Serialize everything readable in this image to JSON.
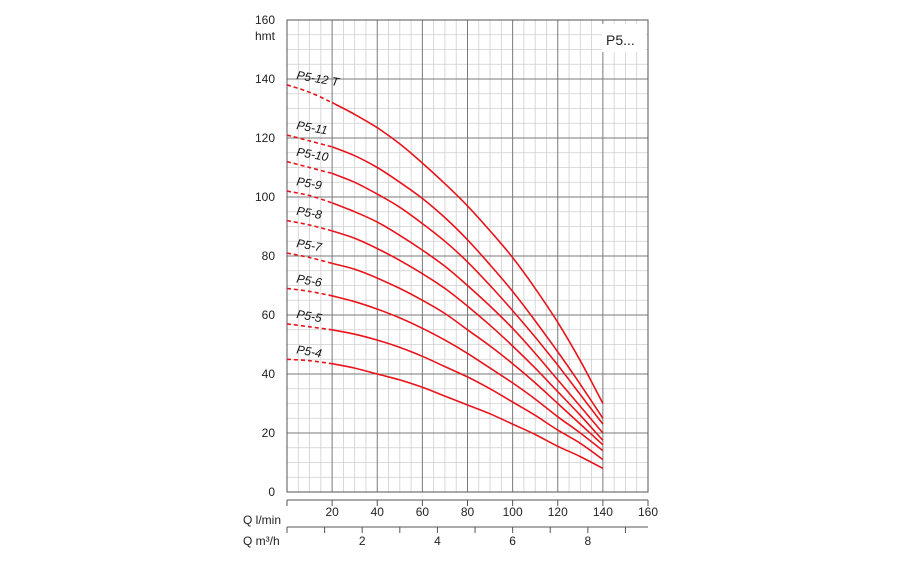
{
  "chart_data": {
    "type": "line",
    "tag": "P5...",
    "y_unit": "hmt",
    "ylim": [
      0,
      160
    ],
    "y_ticks": [
      0,
      20,
      40,
      60,
      80,
      100,
      120,
      140,
      160
    ],
    "x_unit_lmin": "Q l/min",
    "xlim_lmin": [
      0,
      160
    ],
    "x_ticks_lmin": [
      20,
      40,
      60,
      80,
      100,
      120,
      140,
      160
    ],
    "x_unit_m3h": "Q m³/h",
    "x_ticks_m3h": [
      2,
      4,
      6,
      8
    ],
    "grid": true,
    "series": [
      {
        "name": "P5-4",
        "x": [
          0,
          10,
          20,
          30,
          40,
          50,
          60,
          70,
          80,
          90,
          100,
          110,
          120,
          130,
          140
        ],
        "y": [
          45,
          44.5,
          43.5,
          42,
          40,
          38,
          35.5,
          32.5,
          29.5,
          26.5,
          23,
          19.5,
          15.5,
          12,
          8
        ]
      },
      {
        "name": "P5-5",
        "x": [
          0,
          10,
          20,
          30,
          40,
          50,
          60,
          70,
          80,
          90,
          100,
          110,
          120,
          130,
          140
        ],
        "y": [
          57,
          56,
          55,
          53.5,
          51.5,
          49,
          46,
          42.5,
          39,
          35,
          30.5,
          26,
          21,
          16.5,
          11
        ]
      },
      {
        "name": "P5-6",
        "x": [
          0,
          10,
          20,
          30,
          40,
          50,
          60,
          70,
          80,
          90,
          100,
          110,
          120,
          130,
          140
        ],
        "y": [
          69,
          68,
          66.5,
          64.5,
          62,
          59,
          55.5,
          51.5,
          47,
          42,
          37,
          31.5,
          25.5,
          20,
          14
        ]
      },
      {
        "name": "P5-7",
        "x": [
          0,
          10,
          20,
          30,
          40,
          50,
          60,
          70,
          80,
          90,
          100,
          110,
          120,
          130,
          140
        ],
        "y": [
          81,
          79.5,
          77.5,
          75.5,
          72.5,
          69,
          65,
          60.5,
          55,
          49.5,
          43.5,
          37,
          30,
          23,
          16
        ]
      },
      {
        "name": "P5-8",
        "x": [
          0,
          10,
          20,
          30,
          40,
          50,
          60,
          70,
          80,
          90,
          100,
          110,
          120,
          130,
          140
        ],
        "y": [
          92,
          90.5,
          88.5,
          86,
          82.5,
          78.5,
          74,
          69,
          63,
          56.5,
          49.5,
          42,
          34,
          26,
          17.5
        ]
      },
      {
        "name": "P5-9",
        "x": [
          0,
          10,
          20,
          30,
          40,
          50,
          60,
          70,
          80,
          90,
          100,
          110,
          120,
          130,
          140
        ],
        "y": [
          102,
          100.5,
          98,
          95,
          91.5,
          87,
          82,
          76.5,
          70,
          63,
          55.5,
          47,
          38,
          29,
          20
        ]
      },
      {
        "name": "P5-10",
        "x": [
          0,
          10,
          20,
          30,
          40,
          50,
          60,
          70,
          80,
          90,
          100,
          110,
          120,
          130,
          140
        ],
        "y": [
          112,
          110,
          108,
          105,
          101,
          96.5,
          91,
          85,
          78,
          70,
          61.5,
          52.5,
          43,
          33,
          23
        ]
      },
      {
        "name": "P5-11",
        "x": [
          0,
          10,
          20,
          30,
          40,
          50,
          60,
          70,
          80,
          90,
          100,
          110,
          120,
          130,
          140
        ],
        "y": [
          121,
          119,
          117,
          114,
          110,
          105,
          99.5,
          93,
          85.5,
          77,
          68,
          58,
          47.5,
          36.5,
          25
        ]
      },
      {
        "name": "P5-12 T",
        "x": [
          0,
          10,
          20,
          30,
          40,
          50,
          60,
          70,
          80,
          90,
          100,
          110,
          120,
          130,
          140
        ],
        "y": [
          138,
          135.5,
          132,
          128,
          123.5,
          118,
          111.5,
          104.5,
          97,
          88.5,
          79.5,
          69,
          57.5,
          44.5,
          30
        ]
      }
    ]
  }
}
